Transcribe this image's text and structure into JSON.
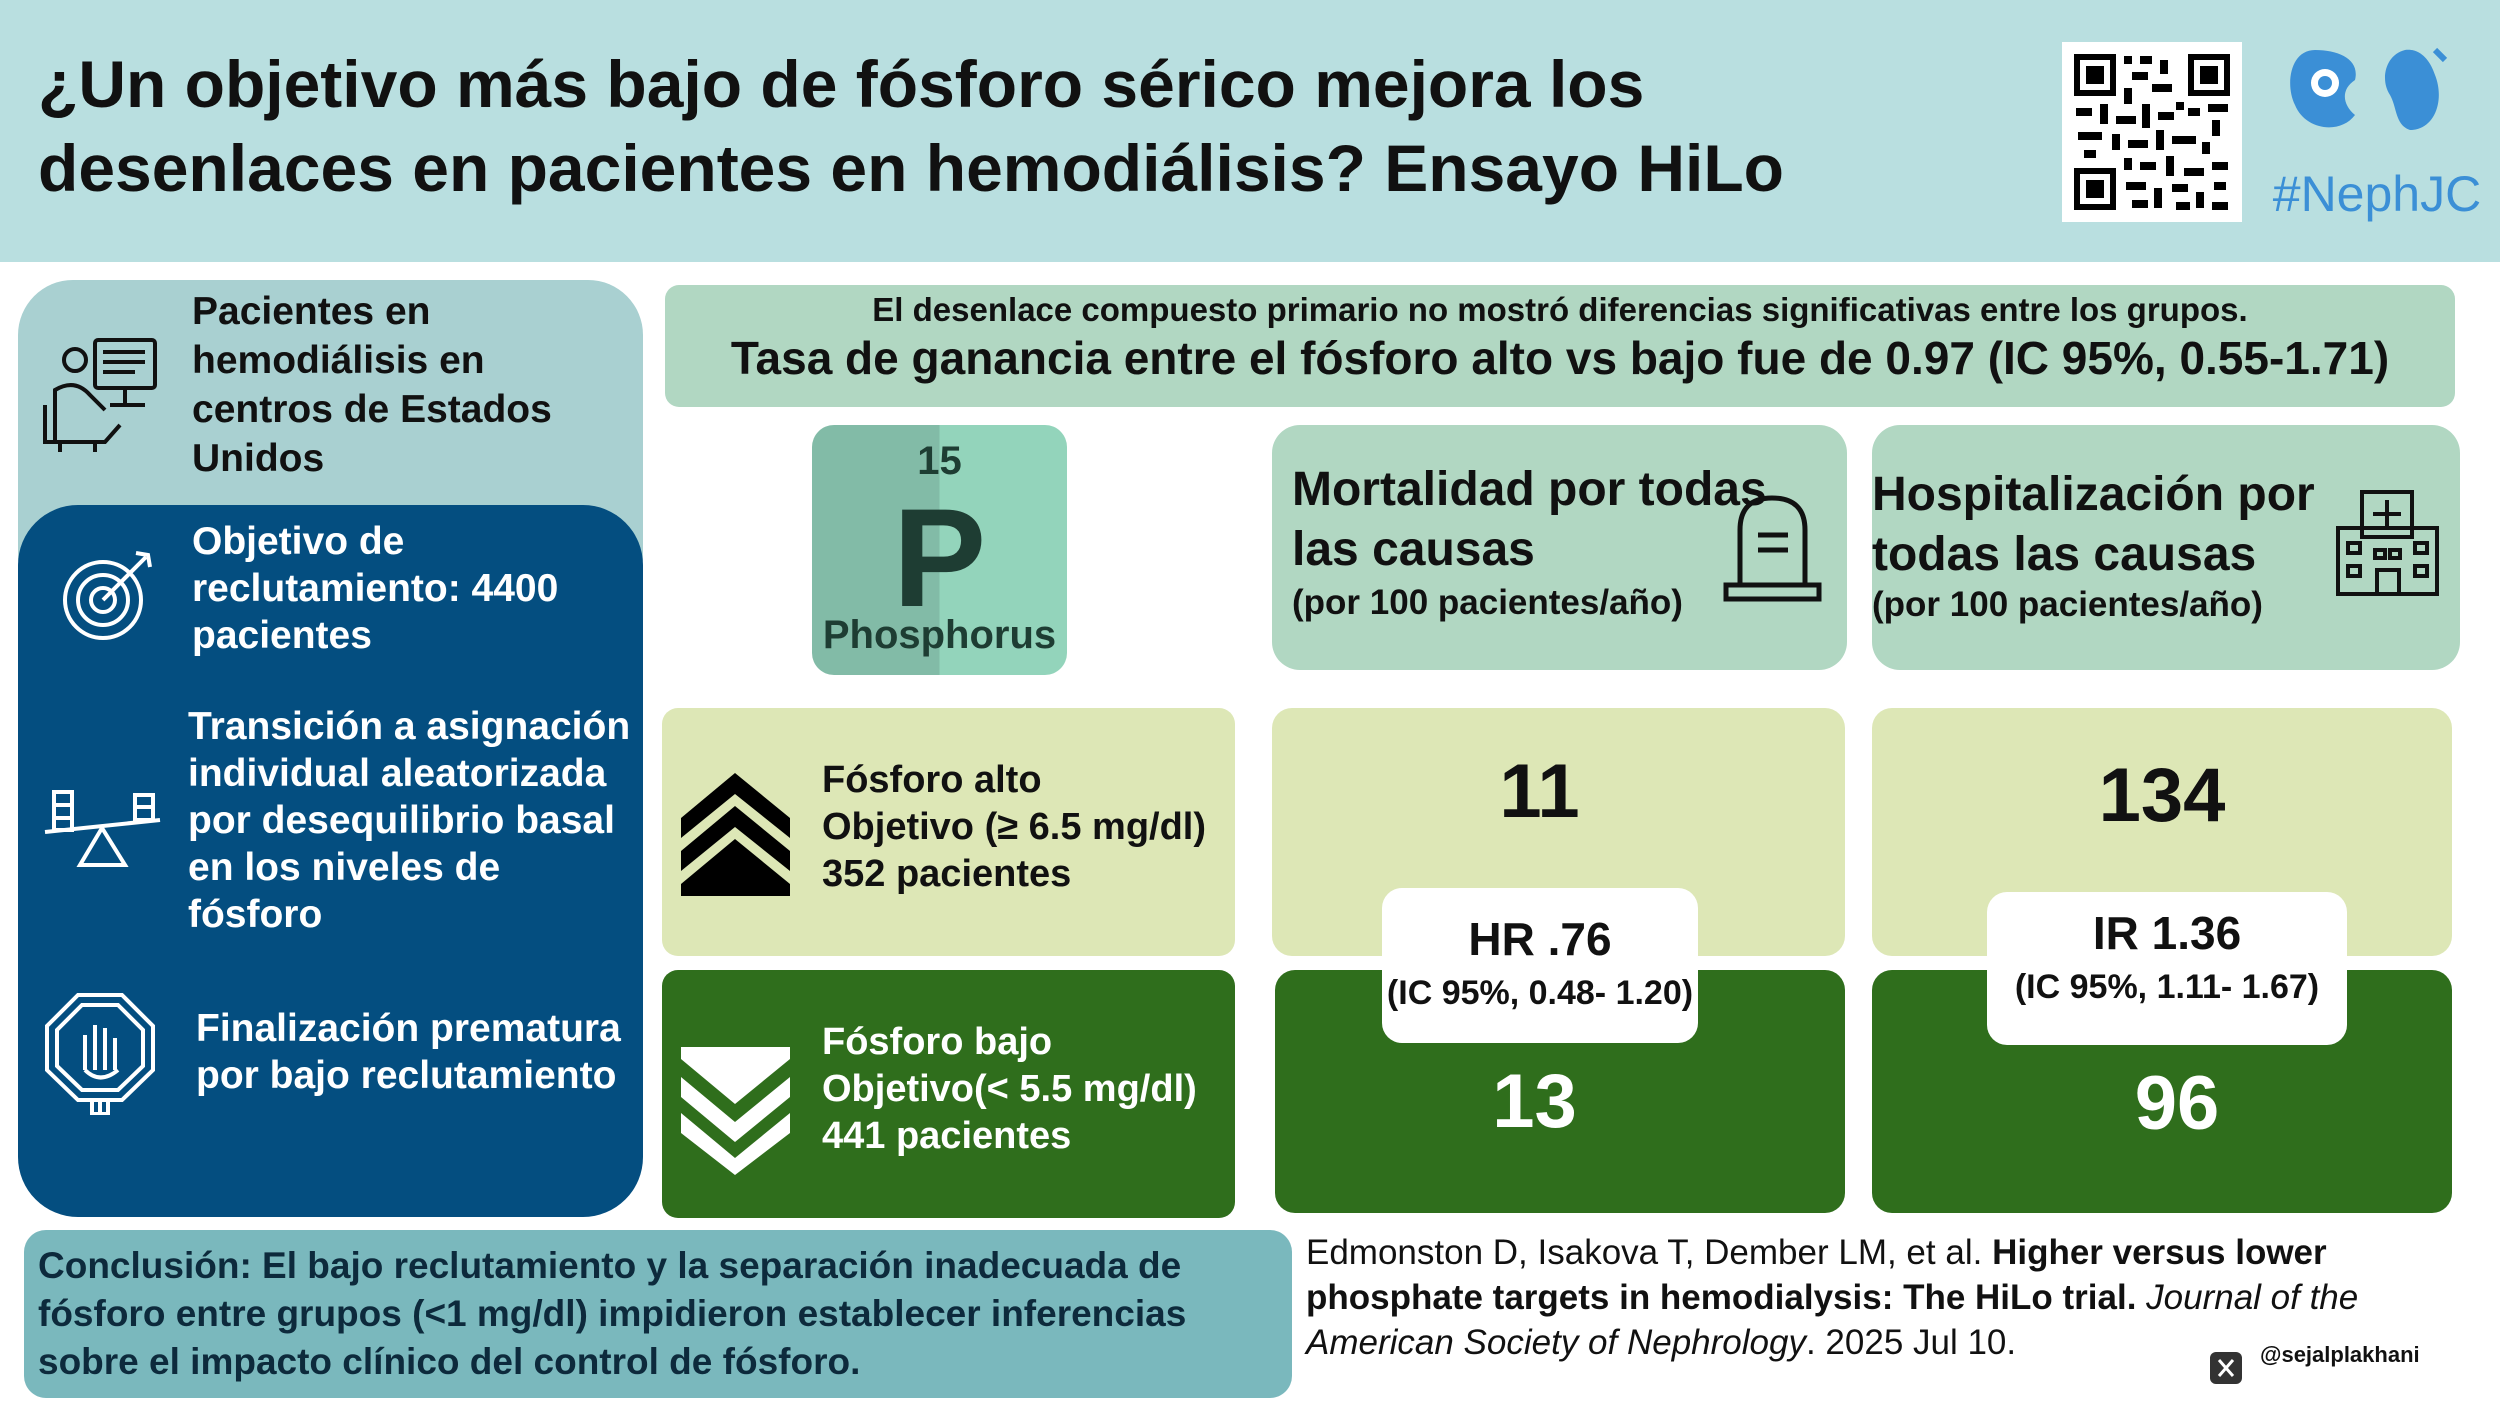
{
  "header": {
    "title_line1": "¿Un objetivo más bajo de fósforo sérico mejora los",
    "title_line2": "desenlaces en pacientes en hemodiálisis? Ensayo HiLo",
    "brand_tag": "#NephJC"
  },
  "left_panel": {
    "population": "Pacientes en hemodiálisis en centros de Estados Unidos",
    "items": [
      {
        "text": "Objetivo de reclutamiento: 4400 pacientes",
        "icon": "target-icon"
      },
      {
        "text": "Transición a asignación individual aleatorizada por desequilibrio basal en los niveles de fósforo",
        "icon": "seesaw-icon"
      },
      {
        "text": "Finalización prematura por bajo reclutamiento",
        "icon": "stop-hand-icon"
      }
    ]
  },
  "banner": {
    "line1": "El desenlace compuesto primario no mostró diferencias significativas entre los grupos.",
    "line2": "Tasa de ganancia entre el fósforo alto vs bajo fue de 0.97 (IC 95%, 0.55-1.71)"
  },
  "element_tile": {
    "number": "15",
    "symbol": "P",
    "name": "Phosphorus"
  },
  "outcomes": {
    "mortality": {
      "title": "Mortalidad por todas las causas",
      "subtitle": "(por 100 pacientes/año)",
      "high_value": "11",
      "low_value": "13",
      "hr": "HR .76",
      "ci": "(IC 95%, 0.48- 1.20)",
      "icon": "tombstone-icon"
    },
    "hospitalization": {
      "title": "Hospitalización por todas las causas",
      "subtitle": "(por 100 pacientes/año)",
      "high_value": "134",
      "low_value": "96",
      "hr": "IR 1.36",
      "ci": "(IC 95%, 1.11- 1.67)",
      "icon": "hospital-icon"
    }
  },
  "arms": {
    "high": {
      "line1": "Fósforo alto",
      "line2": "Objetivo (≥ 6.5 mg/dl)",
      "line3": "352 pacientes",
      "icon": "chevrons-up-icon"
    },
    "low": {
      "line1": "Fósforo bajo",
      "line2": "Objetivo(< 5.5 mg/dl)",
      "line3": "441 pacientes",
      "icon": "chevrons-down-icon"
    }
  },
  "conclusion": "Conclusión: El bajo reclutamiento y la separación inadecuada de fósforo entre grupos (<1 mg/dl) impidieron establecer inferencias sobre el impacto clínico del control de fósforo.",
  "citation": {
    "authors": "Edmonston D, Isakova T, Dember LM, et al.",
    "title": "Higher versus lower phosphate targets in hemodialysis: The HiLo trial.",
    "journal": "Journal of the American Society of Nephrology",
    "date": ". 2025 Jul 10."
  },
  "social_handle": "@sejalplakhani",
  "colors": {
    "header_bg": "#b9dfe0",
    "navy": "#044e80",
    "dark_green": "#2f6e1c",
    "light_green": "#dde7b6",
    "mint": "#b1d7c2",
    "teal": "#7ab8bd"
  }
}
